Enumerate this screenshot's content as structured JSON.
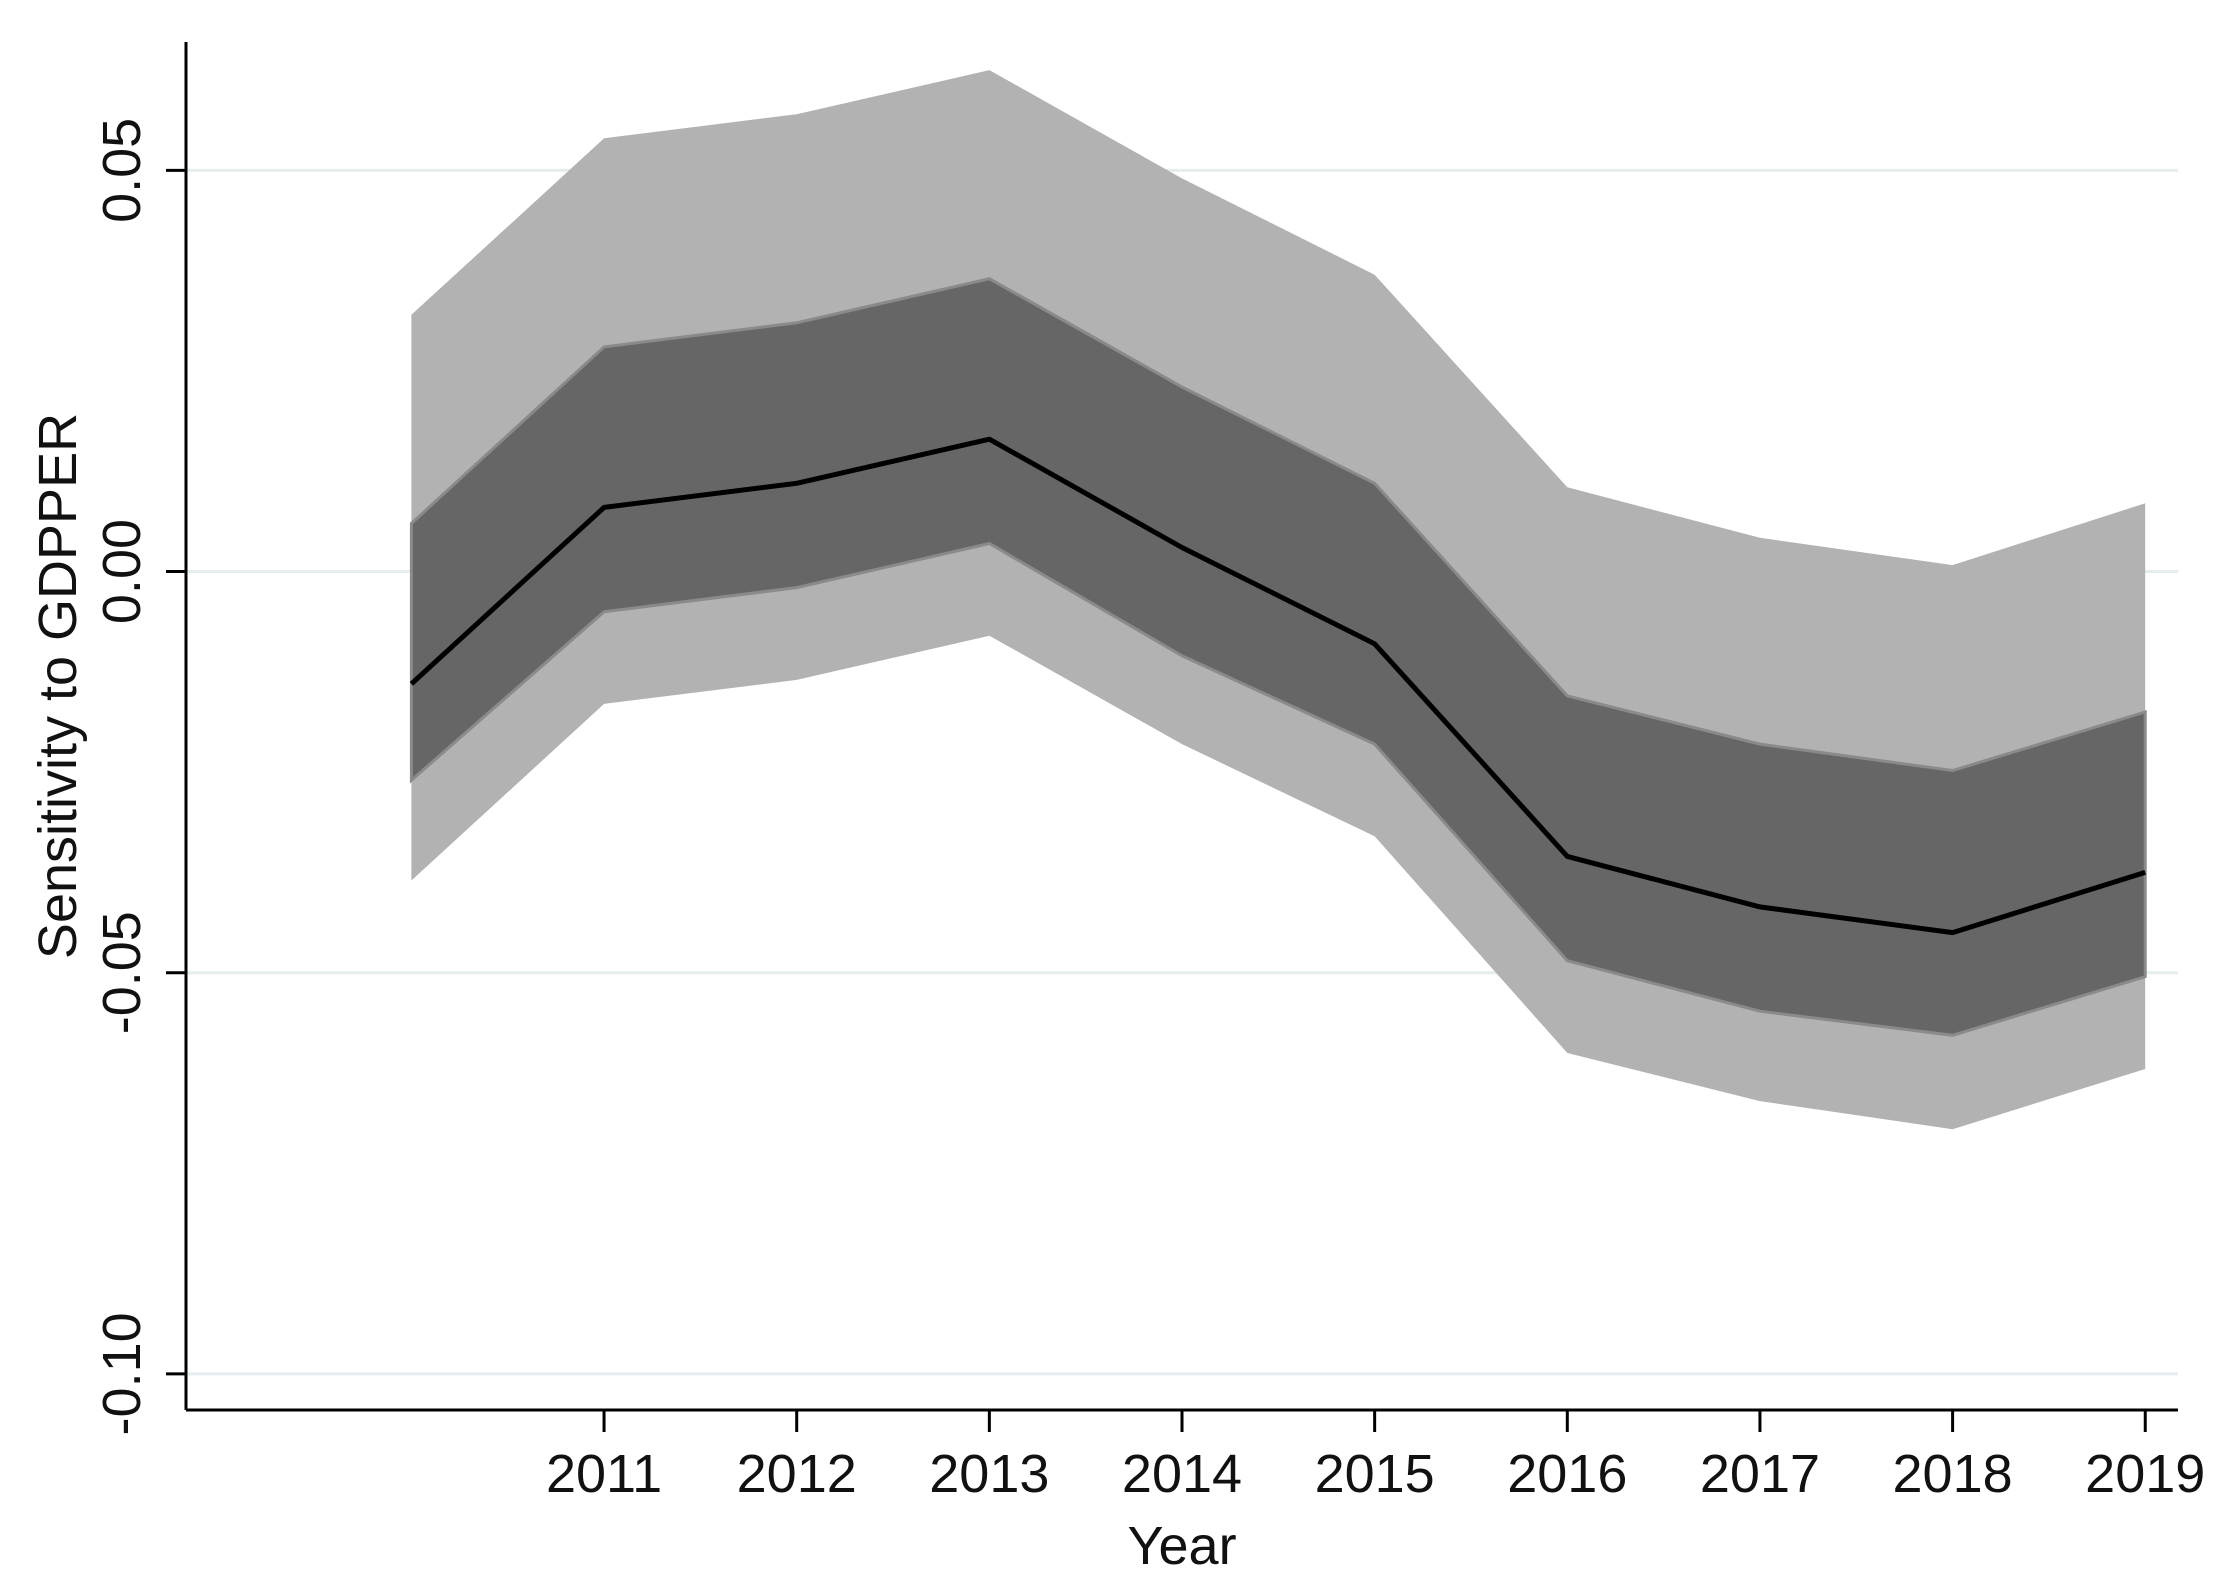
{
  "chart_data": {
    "type": "line",
    "title": "",
    "xlabel": "Year",
    "ylabel": "Sensitivity to GDPPER",
    "x": [
      2010,
      2011,
      2012,
      2013,
      2014,
      2015,
      2016,
      2017,
      2018,
      2019
    ],
    "xticks": [
      2011,
      2012,
      2013,
      2014,
      2015,
      2016,
      2017,
      2018,
      2019
    ],
    "xlim": [
      2008.83,
      2019.17
    ],
    "ylim": [
      -0.1045,
      0.066
    ],
    "yticks": [
      0.05,
      0.0,
      -0.05,
      -0.1
    ],
    "ytick_labels": [
      "0.05",
      "0.00",
      "-0.05",
      "-0.10"
    ],
    "grid": true,
    "series": [
      {
        "name": "estimate",
        "values": [
          -0.014,
          0.008,
          0.011,
          0.0165,
          0.003,
          -0.009,
          -0.0355,
          -0.0418,
          -0.045,
          -0.0375
        ]
      },
      {
        "name": "inner band upper",
        "values": [
          0.006,
          0.028,
          0.031,
          0.0365,
          0.023,
          0.011,
          -0.0155,
          -0.0215,
          -0.0248,
          -0.0175
        ]
      },
      {
        "name": "inner band lower",
        "values": [
          -0.026,
          -0.005,
          -0.002,
          0.0035,
          -0.0105,
          -0.0215,
          -0.0485,
          -0.0548,
          -0.0578,
          -0.0505
        ]
      },
      {
        "name": "outer band upper",
        "values": [
          0.032,
          0.054,
          0.057,
          0.0625,
          0.049,
          0.037,
          0.0105,
          0.0042,
          0.0008,
          0.0085
        ]
      },
      {
        "name": "outer band lower",
        "values": [
          -0.0385,
          -0.0165,
          -0.0135,
          -0.008,
          -0.0215,
          -0.033,
          -0.06,
          -0.066,
          -0.0695,
          -0.062
        ]
      }
    ],
    "colors": {
      "outer_band": "#b2b2b2",
      "inner_band": "#666666",
      "line": "#000000",
      "grid": "#e4eeee",
      "axis": "#000000"
    }
  }
}
